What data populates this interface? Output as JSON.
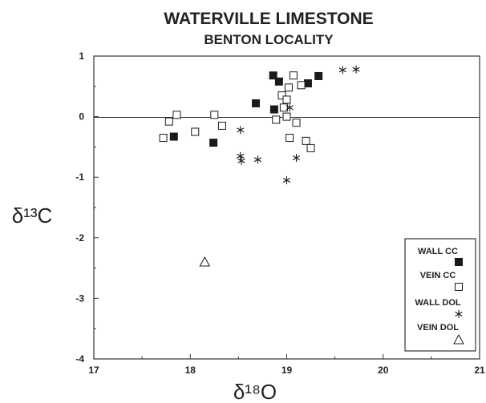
{
  "chart_data": {
    "type": "scatter",
    "title": "WATERVILLE LIMESTONE",
    "subtitle": "BENTON LOCALITY",
    "xlabel": "δ¹⁸O",
    "ylabel": "δ¹³C",
    "xlim": [
      17,
      21
    ],
    "ylim": [
      -4,
      1
    ],
    "x_ticks": [
      "17",
      "18",
      "19",
      "20",
      "21"
    ],
    "y_ticks": [
      "1",
      "0",
      "-1",
      "-2",
      "-3",
      "-4"
    ],
    "legend_position": "bottom-right",
    "series": [
      {
        "name": "WALL CC",
        "marker": "filled-square",
        "x": [
          17.83,
          18.24,
          18.68,
          18.86,
          18.92,
          18.87,
          19.22,
          19.33
        ],
        "y": [
          -0.33,
          -0.43,
          0.22,
          0.68,
          0.58,
          0.12,
          0.55,
          0.67
        ]
      },
      {
        "name": "VEIN CC",
        "marker": "open-square",
        "x": [
          17.72,
          17.78,
          17.86,
          18.05,
          18.25,
          18.33,
          18.89,
          18.95,
          18.97,
          19.0,
          19.02,
          19.03,
          19.07,
          19.1,
          19.15,
          19.2,
          19.0,
          19.25
        ],
        "y": [
          -0.35,
          -0.08,
          0.03,
          -0.25,
          0.03,
          -0.15,
          -0.05,
          0.35,
          0.15,
          0.28,
          0.48,
          -0.35,
          0.68,
          -0.1,
          0.52,
          -0.4,
          0.0,
          -0.52
        ]
      },
      {
        "name": "WALL DOL",
        "marker": "asterisk",
        "x": [
          18.52,
          18.52,
          18.53,
          18.7,
          19.03,
          19.1,
          19.0,
          19.58,
          19.72
        ],
        "y": [
          -0.22,
          -0.65,
          -0.73,
          -0.71,
          0.15,
          -0.68,
          -1.05,
          0.77,
          0.78
        ]
      },
      {
        "name": "VEIN DOL",
        "marker": "open-triangle",
        "x": [
          18.15
        ],
        "y": [
          -2.4
        ]
      }
    ]
  }
}
